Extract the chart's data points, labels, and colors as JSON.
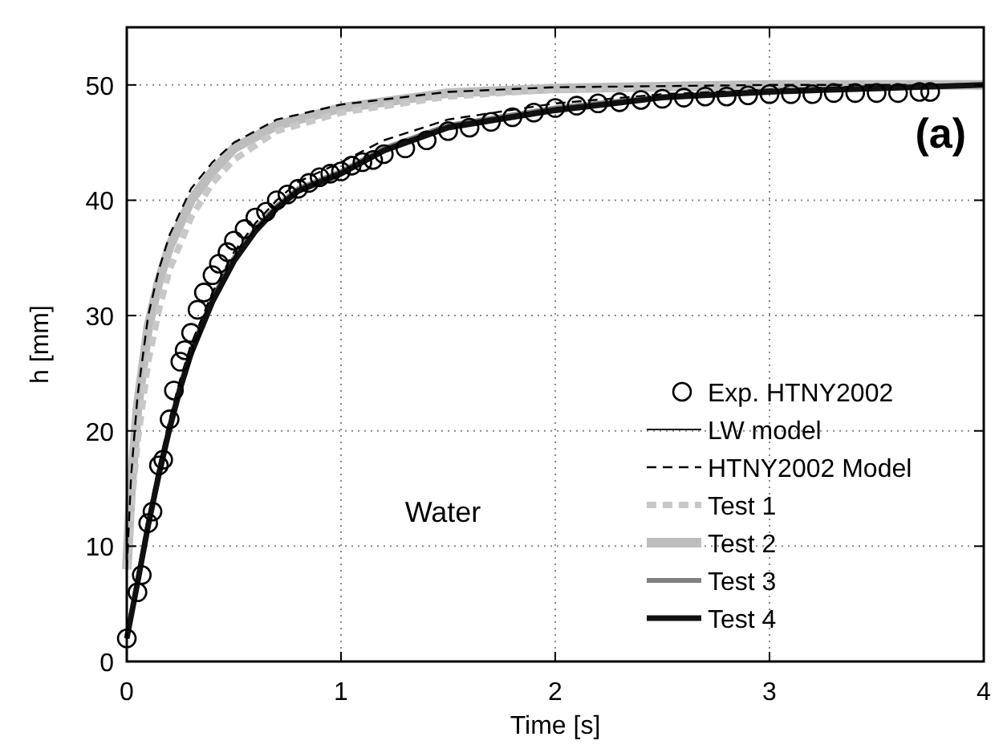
{
  "chart_data": {
    "type": "line",
    "xlabel": "Time [s]",
    "ylabel": "h [mm]",
    "xlim": [
      0,
      4
    ],
    "ylim": [
      0,
      55
    ],
    "xticks": [
      0,
      1,
      2,
      3,
      4
    ],
    "yticks": [
      0,
      10,
      20,
      30,
      40,
      50
    ],
    "grid": true,
    "legend": "bottom right",
    "annotations": [
      "Water",
      "(a)"
    ],
    "series": [
      {
        "name": "Exp. HTNY2002",
        "type": "scatter",
        "marker": "circle",
        "color": "#000000",
        "x": [
          0,
          0.05,
          0.07,
          0.1,
          0.12,
          0.15,
          0.17,
          0.2,
          0.22,
          0.25,
          0.27,
          0.3,
          0.33,
          0.36,
          0.4,
          0.43,
          0.47,
          0.5,
          0.55,
          0.6,
          0.65,
          0.7,
          0.75,
          0.8,
          0.85,
          0.9,
          0.95,
          1,
          1.05,
          1.1,
          1.15,
          1.2,
          1.3,
          1.4,
          1.5,
          1.6,
          1.7,
          1.8,
          1.9,
          2,
          2.1,
          2.2,
          2.3,
          2.4,
          2.5,
          2.6,
          2.7,
          2.8,
          2.9,
          3,
          3.1,
          3.2,
          3.3,
          3.4,
          3.5,
          3.6,
          3.7,
          3.75
        ],
        "values": [
          2,
          6,
          7.5,
          12,
          13,
          17,
          17.5,
          21,
          23.5,
          26,
          27,
          28.5,
          30.5,
          32,
          33.5,
          34.5,
          35.5,
          36.5,
          37.5,
          38.5,
          39,
          40,
          40.5,
          41,
          41.5,
          42,
          42.3,
          42.5,
          43,
          43.3,
          43.5,
          44,
          44.5,
          45.2,
          46,
          46.3,
          46.8,
          47.2,
          47.6,
          48,
          48.2,
          48.4,
          48.5,
          48.7,
          48.8,
          48.9,
          49,
          49,
          49.1,
          49.2,
          49.2,
          49.2,
          49.3,
          49.3,
          49.3,
          49.3,
          49.4,
          49.4
        ]
      },
      {
        "name": "LW model",
        "line_style": "solid",
        "color": "#000000",
        "x": [
          0,
          0.05,
          0.1,
          0.15,
          0.2,
          0.25,
          0.3,
          0.4,
          0.5,
          0.6,
          0.7,
          0.8,
          1,
          1.2,
          1.5,
          2,
          2.5,
          3,
          3.5,
          4
        ],
        "values": [
          2,
          7,
          12,
          16.5,
          20.5,
          24,
          27,
          31.5,
          35,
          37.5,
          39.5,
          41,
          42.5,
          44.5,
          46.5,
          48,
          49,
          49.5,
          49.8,
          50
        ]
      },
      {
        "name": "HTNY2002 Model",
        "type": "line",
        "line_style": "dashed",
        "color": "#000000",
        "x": [
          0,
          0.05,
          0.1,
          0.15,
          0.2,
          0.25,
          0.3,
          0.4,
          0.5,
          0.6,
          0.7,
          0.8,
          1,
          1.2,
          1.5,
          2,
          2.5,
          3,
          3.5,
          4
        ],
        "values": [
          2,
          7.5,
          12.5,
          17,
          21,
          24.5,
          27.5,
          32,
          35.5,
          38,
          40,
          41.6,
          43.3,
          45.2,
          47,
          48.4,
          49.2,
          49.6,
          49.9,
          50
        ]
      },
      {
        "type": "line",
        "line_style": "dashed",
        "color": "#000000",
        "x": [
          0,
          0.02,
          0.05,
          0.1,
          0.15,
          0.2,
          0.3,
          0.4,
          0.5,
          0.7,
          1,
          1.5,
          2,
          3,
          4
        ],
        "values": [
          8,
          16,
          23,
          30,
          34,
          37,
          41,
          43.3,
          45,
          47,
          48.3,
          49.4,
          49.8,
          50,
          50
        ]
      },
      {
        "name": "Test 1",
        "type": "line",
        "line_style": "dashed",
        "color": "#c8c8c8",
        "x": [
          0,
          0.02,
          0.05,
          0.1,
          0.15,
          0.2,
          0.3,
          0.4,
          0.5,
          0.7,
          1,
          1.5,
          2,
          3,
          4
        ],
        "values": [
          8,
          13,
          19,
          26,
          30.5,
          34,
          38.5,
          41.5,
          43.5,
          46,
          47.6,
          49,
          49.6,
          50,
          50
        ]
      },
      {
        "name": "Test 2",
        "type": "line",
        "line_style": "solid",
        "color": "#bdbdbd",
        "x": [
          0,
          0.02,
          0.05,
          0.1,
          0.15,
          0.2,
          0.3,
          0.4,
          0.5,
          0.7,
          1,
          1.5,
          2,
          3,
          4
        ],
        "values": [
          8,
          15,
          22,
          29,
          33,
          36,
          40,
          42.5,
          44.5,
          46.5,
          48,
          49.3,
          49.7,
          50,
          50
        ]
      },
      {
        "name": "Test 3",
        "type": "line",
        "line_style": "solid",
        "color": "#808080",
        "x": [
          0,
          0.05,
          0.1,
          0.15,
          0.2,
          0.25,
          0.3,
          0.4,
          0.5,
          0.6,
          0.7,
          0.8,
          1,
          1.2,
          1.5,
          2,
          2.5,
          3,
          3.5,
          4
        ],
        "values": [
          2,
          7,
          12,
          16.5,
          20.5,
          24,
          27,
          31.5,
          35,
          37.5,
          39.5,
          41,
          42.5,
          44.5,
          46.5,
          48,
          49,
          49.5,
          49.8,
          50
        ]
      },
      {
        "name": "Test 4",
        "type": "line",
        "line_style": "solid",
        "color": "#111111",
        "x": [
          0,
          0.05,
          0.1,
          0.15,
          0.2,
          0.25,
          0.3,
          0.4,
          0.5,
          0.6,
          0.7,
          0.8,
          1,
          1.2,
          1.5,
          2,
          2.5,
          3,
          3.5,
          4
        ],
        "values": [
          2,
          6.8,
          11.8,
          16.2,
          20.2,
          23.7,
          26.7,
          31.2,
          34.7,
          37.3,
          39.3,
          40.8,
          42.3,
          44.3,
          46.3,
          47.8,
          48.9,
          49.4,
          49.7,
          50
        ]
      }
    ]
  }
}
